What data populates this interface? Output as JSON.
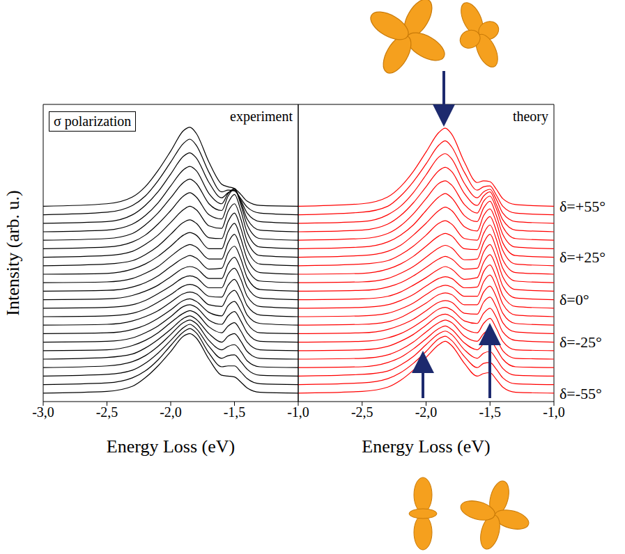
{
  "chart_data": [
    {
      "type": "line",
      "title": "experiment",
      "annotations": [
        {
          "text": "σ polarization"
        }
      ],
      "xlabel": "Energy Loss (eV)",
      "ylabel": "Intensity (arb. u.)",
      "color": "#000000",
      "grid": false,
      "tick_labels": "x",
      "xlim": [
        -3,
        -1
      ],
      "xticks": [
        {
          "value": -3,
          "label": "-3,0"
        },
        {
          "value": -2.5,
          "label": "-2,5"
        },
        {
          "value": -2,
          "label": "-2,0"
        },
        {
          "value": -1.5,
          "label": "-1,5"
        },
        {
          "value": -1,
          "label": "-1,0"
        }
      ],
      "ylim": [
        0,
        35
      ],
      "x": [
        -3.0,
        -2.5,
        -2.3,
        -2.2,
        -2.1,
        -2.0,
        -1.9,
        -1.85,
        -1.8,
        -1.7,
        -1.6,
        -1.55,
        -1.5,
        -1.45,
        -1.4,
        -1.3,
        -1.0
      ],
      "series": [
        {
          "values": [
            1,
            1.2,
            1.8,
            2.8,
            4.2,
            5.9,
            7.7,
            8.0,
            7.5,
            5.0,
            3.1,
            3.0,
            2.9,
            2.3,
            1.6,
            1.1,
            1
          ]
        },
        {
          "values": [
            2,
            2.2,
            2.8,
            3.6,
            4.9,
            6.6,
            8.2,
            8.6,
            8.1,
            5.7,
            4.1,
            4.2,
            4.2,
            3.5,
            2.7,
            2.1,
            2
          ]
        },
        {
          "values": [
            3,
            3.2,
            3.7,
            4.5,
            5.7,
            7.2,
            8.7,
            9.1,
            8.6,
            6.5,
            5.1,
            5.4,
            5.5,
            4.7,
            3.8,
            3.1,
            3
          ]
        },
        {
          "values": [
            4,
            4.2,
            4.7,
            5.4,
            6.5,
            7.9,
            9.3,
            9.6,
            9.2,
            7.2,
            6.1,
            6.5,
            6.7,
            5.9,
            4.8,
            4.1,
            4
          ]
        },
        {
          "values": [
            5,
            5.2,
            5.6,
            6.3,
            7.3,
            8.5,
            9.8,
            10.1,
            9.7,
            8.0,
            7.0,
            7.7,
            8.0,
            7.1,
            5.9,
            5.1,
            5
          ]
        },
        {
          "values": [
            6,
            6.1,
            6.6,
            7.2,
            8.1,
            9.3,
            10.4,
            10.7,
            10.4,
            8.8,
            8.1,
            8.9,
            9.3,
            8.3,
            7.0,
            6.1,
            6
          ]
        },
        {
          "values": [
            7,
            7.1,
            7.5,
            8.1,
            8.9,
            10.0,
            11.2,
            11.4,
            11.1,
            9.6,
            9.1,
            10.1,
            10.6,
            9.5,
            8.1,
            7.1,
            7
          ]
        },
        {
          "values": [
            8,
            8.1,
            8.5,
            9.0,
            9.8,
            10.8,
            11.9,
            12.1,
            11.8,
            10.5,
            10.1,
            11.3,
            11.8,
            10.7,
            9.2,
            8.1,
            8
          ]
        },
        {
          "values": [
            9,
            9.1,
            9.5,
            10.0,
            10.7,
            11.7,
            12.7,
            12.9,
            12.7,
            11.4,
            11.2,
            12.5,
            13.1,
            11.9,
            10.2,
            9.2,
            9
          ]
        },
        {
          "values": [
            10,
            10.1,
            10.4,
            10.9,
            11.7,
            12.6,
            13.6,
            13.8,
            13.6,
            12.4,
            12.3,
            13.7,
            14.4,
            13.1,
            11.3,
            10.2,
            10
          ]
        },
        {
          "values": [
            11,
            11.1,
            11.4,
            11.9,
            12.7,
            13.6,
            14.6,
            14.8,
            14.6,
            13.4,
            13.4,
            15.0,
            15.7,
            14.4,
            12.4,
            11.2,
            11
          ]
        },
        {
          "values": [
            12,
            12.1,
            12.5,
            13.0,
            13.7,
            14.7,
            15.7,
            15.9,
            15.7,
            14.5,
            14.5,
            16.2,
            17.0,
            15.6,
            13.5,
            12.2,
            12
          ]
        },
        {
          "values": [
            13,
            13.1,
            13.5,
            14.0,
            14.8,
            15.9,
            16.9,
            17.2,
            16.9,
            15.6,
            15.7,
            17.5,
            18.3,
            16.8,
            14.6,
            13.2,
            13
          ]
        },
        {
          "values": [
            14,
            14.1,
            14.5,
            15.1,
            15.9,
            17.1,
            18.2,
            18.5,
            18.2,
            16.8,
            16.8,
            18.7,
            19.7,
            18.0,
            15.7,
            14.2,
            14
          ]
        },
        {
          "values": [
            15,
            15.1,
            15.6,
            16.2,
            17.1,
            18.3,
            19.6,
            19.9,
            19.6,
            18.0,
            18.0,
            20.0,
            21.0,
            19.2,
            16.8,
            15.2,
            15
          ]
        },
        {
          "values": [
            16,
            16.2,
            16.6,
            17.3,
            18.3,
            19.7,
            21.1,
            21.4,
            21.0,
            19.3,
            19.2,
            21.2,
            22.2,
            20.4,
            17.9,
            16.2,
            16
          ]
        },
        {
          "values": [
            17,
            17.2,
            17.7,
            18.5,
            19.6,
            21.1,
            22.6,
            23.0,
            22.6,
            20.7,
            20.4,
            22.4,
            23.3,
            21.5,
            18.9,
            17.2,
            17
          ]
        },
        {
          "values": [
            18,
            18.2,
            18.8,
            19.6,
            20.9,
            22.5,
            24.2,
            24.6,
            24.1,
            22.0,
            21.5,
            23.4,
            24.4,
            22.5,
            19.9,
            18.2,
            18
          ]
        },
        {
          "values": [
            19,
            19.2,
            19.8,
            20.8,
            22.2,
            24.0,
            25.8,
            26.2,
            25.7,
            23.3,
            22.5,
            24.2,
            25.0,
            23.2,
            20.8,
            19.2,
            19
          ]
        },
        {
          "values": [
            20,
            20.2,
            20.9,
            21.9,
            23.4,
            25.4,
            27.3,
            27.7,
            27.2,
            24.5,
            23.3,
            24.5,
            25.1,
            23.5,
            21.5,
            20.2,
            20
          ]
        },
        {
          "values": [
            21,
            21.2,
            22.0,
            23.1,
            24.7,
            26.8,
            28.9,
            29.3,
            28.7,
            25.8,
            24.0,
            24.6,
            24.9,
            23.7,
            22.2,
            21.2,
            21
          ]
        },
        {
          "values": [
            22,
            22.3,
            23.1,
            24.2,
            26.0,
            28.2,
            30.4,
            30.9,
            30.2,
            27.0,
            24.7,
            24.9,
            24.8,
            23.9,
            22.9,
            22.2,
            22
          ]
        },
        {
          "values": [
            23,
            23.3,
            24.1,
            25.3,
            27.2,
            29.5,
            31.9,
            32.3,
            31.6,
            28.2,
            25.6,
            25.3,
            25.1,
            24.4,
            23.6,
            23.1,
            23
          ]
        }
      ]
    },
    {
      "type": "line",
      "title": "theory",
      "annotations": [
        {
          "text": "δ=+55°",
          "y": 23
        },
        {
          "text": "δ=+25°",
          "y": 17
        },
        {
          "text": "δ=0°",
          "y": 12
        },
        {
          "text": "δ=-25°",
          "y": 7
        },
        {
          "text": "δ=-55°",
          "y": 1
        }
      ],
      "xlabel": "Energy Loss (eV)",
      "color": "#ff0000",
      "grid": false,
      "tick_labels": "x",
      "xlim": [
        -3,
        -1
      ],
      "xticks": [
        {
          "value": -2.5,
          "label": "-2,5"
        },
        {
          "value": -2,
          "label": "-2,0"
        },
        {
          "value": -1.5,
          "label": "-1,5"
        },
        {
          "value": -1,
          "label": "-1,0"
        }
      ],
      "ylim": [
        0,
        35
      ],
      "x": [
        -3.0,
        -2.5,
        -2.3,
        -2.2,
        -2.1,
        -2.0,
        -1.9,
        -1.85,
        -1.8,
        -1.7,
        -1.6,
        -1.55,
        -1.5,
        -1.45,
        -1.4,
        -1.3,
        -1.0
      ],
      "series": [
        {
          "values": [
            1,
            1.2,
            1.7,
            2.5,
            3.7,
            5.2,
            6.7,
            7.1,
            6.6,
            4.5,
            3.0,
            3.3,
            3.4,
            2.6,
            1.7,
            1.1,
            1
          ]
        },
        {
          "values": [
            2,
            2.2,
            2.7,
            3.4,
            4.5,
            5.9,
            7.4,
            7.7,
            7.2,
            5.3,
            4.0,
            4.5,
            4.6,
            3.8,
            2.8,
            2.1,
            2
          ]
        },
        {
          "values": [
            3,
            3.2,
            3.6,
            4.3,
            5.3,
            6.7,
            8.0,
            8.3,
            7.9,
            6.1,
            5.1,
            5.7,
            5.9,
            5.0,
            3.9,
            3.1,
            3
          ]
        },
        {
          "values": [
            4,
            4.1,
            4.6,
            5.2,
            6.2,
            7.4,
            8.6,
            8.9,
            8.5,
            6.9,
            6.1,
            6.8,
            7.2,
            6.2,
            5.0,
            4.1,
            4
          ]
        },
        {
          "values": [
            5,
            5.1,
            5.5,
            6.1,
            7.0,
            8.2,
            9.3,
            9.6,
            9.3,
            7.7,
            7.1,
            8.0,
            8.5,
            7.4,
            6.0,
            5.1,
            5
          ]
        },
        {
          "values": [
            6,
            6.1,
            6.5,
            7.1,
            7.9,
            9.0,
            10.1,
            10.3,
            10.0,
            8.6,
            8.1,
            9.2,
            9.8,
            8.6,
            7.1,
            6.1,
            6
          ]
        },
        {
          "values": [
            7,
            7.1,
            7.5,
            8.0,
            8.8,
            9.8,
            10.9,
            11.1,
            10.8,
            9.5,
            9.2,
            10.4,
            11.0,
            9.9,
            8.2,
            7.2,
            7
          ]
        },
        {
          "values": [
            8,
            8.1,
            8.5,
            9.0,
            9.7,
            10.7,
            11.7,
            11.9,
            11.7,
            10.4,
            10.3,
            11.7,
            12.3,
            11.1,
            9.3,
            8.2,
            8
          ]
        },
        {
          "values": [
            9,
            9.1,
            9.4,
            9.9,
            10.7,
            11.6,
            12.6,
            12.8,
            12.6,
            11.4,
            11.4,
            12.9,
            13.6,
            12.3,
            10.4,
            9.2,
            9
          ]
        },
        {
          "values": [
            10,
            10.1,
            10.4,
            10.9,
            11.6,
            12.6,
            13.5,
            13.7,
            13.5,
            12.4,
            12.4,
            14.1,
            14.9,
            13.5,
            11.5,
            10.2,
            10
          ]
        },
        {
          "values": [
            11,
            11.1,
            11.4,
            11.9,
            12.6,
            13.6,
            14.5,
            14.7,
            14.5,
            13.4,
            13.5,
            15.3,
            16.1,
            14.6,
            12.5,
            11.2,
            11
          ]
        },
        {
          "values": [
            12,
            12.1,
            12.4,
            12.9,
            13.7,
            14.6,
            15.6,
            15.9,
            15.6,
            14.4,
            14.6,
            16.4,
            17.3,
            15.8,
            13.6,
            12.2,
            12
          ]
        },
        {
          "values": [
            13,
            13.1,
            13.5,
            14.0,
            14.8,
            15.8,
            16.8,
            17.1,
            16.8,
            15.6,
            15.7,
            17.6,
            18.5,
            16.9,
            14.7,
            13.2,
            13
          ]
        },
        {
          "values": [
            14,
            14.1,
            14.5,
            15.1,
            15.9,
            17.0,
            18.1,
            18.4,
            18.1,
            16.7,
            16.8,
            18.7,
            19.7,
            18.0,
            15.7,
            14.2,
            14
          ]
        },
        {
          "values": [
            15,
            15.1,
            15.6,
            16.2,
            17.1,
            18.3,
            19.5,
            19.8,
            19.5,
            18.0,
            17.9,
            19.8,
            20.8,
            19.1,
            16.7,
            15.2,
            15
          ]
        },
        {
          "values": [
            16,
            16.2,
            16.6,
            17.3,
            18.3,
            19.6,
            21.0,
            21.3,
            20.9,
            19.2,
            19.0,
            20.9,
            21.8,
            20.1,
            17.8,
            16.2,
            16
          ]
        },
        {
          "values": [
            17,
            17.2,
            17.7,
            18.4,
            19.6,
            21.0,
            22.5,
            22.9,
            22.5,
            20.6,
            20.1,
            21.9,
            22.7,
            21.1,
            18.7,
            17.2,
            17
          ]
        },
        {
          "values": [
            18,
            18.2,
            18.8,
            19.6,
            20.8,
            22.5,
            24.1,
            24.5,
            24.0,
            21.9,
            21.2,
            22.8,
            23.6,
            21.9,
            19.7,
            18.2,
            18
          ]
        },
        {
          "values": [
            19,
            19.2,
            19.8,
            20.7,
            22.1,
            23.9,
            25.7,
            26.0,
            25.5,
            23.2,
            22.2,
            23.6,
            24.2,
            22.7,
            20.6,
            19.2,
            19
          ]
        },
        {
          "values": [
            20,
            20.2,
            20.9,
            21.9,
            23.4,
            25.3,
            27.2,
            27.6,
            27.1,
            24.5,
            23.1,
            24.2,
            24.7,
            23.2,
            21.4,
            20.2,
            20
          ]
        },
        {
          "values": [
            21,
            21.2,
            22.0,
            23.0,
            24.6,
            26.7,
            28.8,
            29.2,
            28.6,
            25.7,
            24.0,
            24.7,
            25.0,
            23.8,
            22.2,
            21.2,
            21
          ]
        },
        {
          "values": [
            22,
            22.3,
            23.0,
            24.2,
            25.9,
            28.0,
            30.2,
            30.7,
            30.0,
            27.0,
            24.9,
            25.3,
            25.4,
            24.3,
            23.0,
            22.2,
            22
          ]
        },
        {
          "values": [
            23,
            23.3,
            24.1,
            25.3,
            27.1,
            29.4,
            31.7,
            32.2,
            31.5,
            28.2,
            25.8,
            26.0,
            25.9,
            25.0,
            23.9,
            23.2,
            23
          ]
        }
      ]
    }
  ]
}
